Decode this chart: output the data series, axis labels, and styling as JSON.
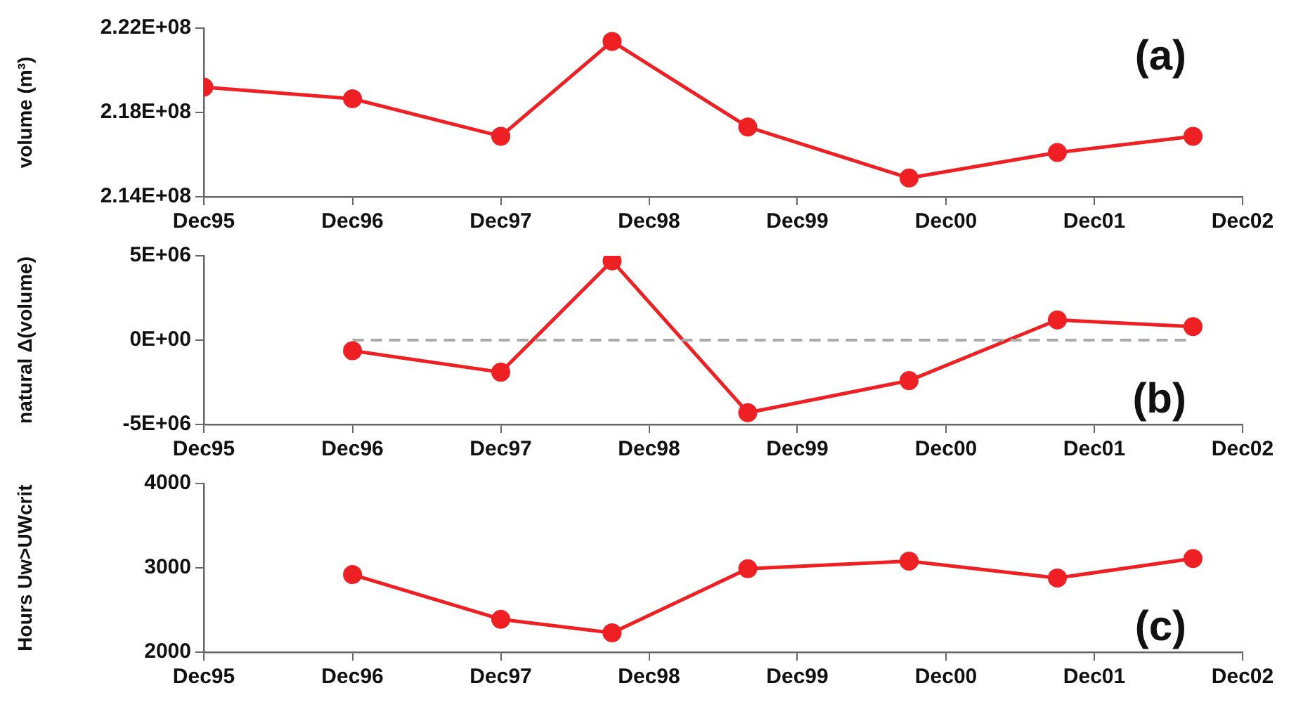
{
  "chart_data": [
    {
      "type": "line",
      "ylabel": "volume (m³)",
      "annotations": [
        "(a)"
      ],
      "marker": "circle",
      "line_style": "solid",
      "grid": false,
      "legend": false,
      "x": [
        "1995-12",
        "1996-12",
        "1997-12",
        "1998-09",
        "1999-08",
        "2000-09",
        "2001-09",
        "2002-08"
      ],
      "series": [
        {
          "color": "#ee2024",
          "values": [
            219200000,
            218650000,
            216870000,
            221370000,
            217310000,
            214890000,
            216100000,
            216870000
          ]
        }
      ],
      "xlim": [
        "1995-12",
        "2002-12"
      ],
      "xticks": [
        {
          "value": "1995-12",
          "label": "Dec95"
        },
        {
          "value": "1996-12",
          "label": "Dec96"
        },
        {
          "value": "1997-12",
          "label": "Dec97"
        },
        {
          "value": "1998-12",
          "label": "Dec98"
        },
        {
          "value": "1999-12",
          "label": "Dec99"
        },
        {
          "value": "2000-12",
          "label": "Dec00"
        },
        {
          "value": "2001-12",
          "label": "Dec01"
        },
        {
          "value": "2002-12",
          "label": "Dec02"
        }
      ],
      "ylim": [
        214000000,
        222000000
      ],
      "yticks": [
        {
          "value": 214000000,
          "label": "2.14E+08"
        },
        {
          "value": 218000000,
          "label": "2.18E+08"
        },
        {
          "value": 222000000,
          "label": "2.22E+08"
        }
      ]
    },
    {
      "type": "line",
      "ylabel": "natural Δ(volume)",
      "annotations": [
        "(b)"
      ],
      "marker": "circle",
      "line_style": "solid",
      "grid": false,
      "legend": false,
      "x": [
        "1996-12",
        "1997-12",
        "1998-09",
        "1999-08",
        "2000-09",
        "2001-09",
        "2002-08"
      ],
      "series": [
        {
          "color": "#ee2024",
          "values": [
            -630000,
            -1900000,
            4700000,
            -4300000,
            -2400000,
            1200000,
            800000
          ]
        }
      ],
      "ref_lines": [
        {
          "axis": "y",
          "value": 0,
          "color": "#aaaaaa",
          "line_style": "dashed"
        }
      ],
      "xlim": [
        "1995-12",
        "2002-12"
      ],
      "xticks": [
        {
          "value": "1995-12",
          "label": "Dec95"
        },
        {
          "value": "1996-12",
          "label": "Dec96"
        },
        {
          "value": "1997-12",
          "label": "Dec97"
        },
        {
          "value": "1998-12",
          "label": "Dec98"
        },
        {
          "value": "1999-12",
          "label": "Dec99"
        },
        {
          "value": "2000-12",
          "label": "Dec00"
        },
        {
          "value": "2001-12",
          "label": "Dec01"
        },
        {
          "value": "2002-12",
          "label": "Dec02"
        }
      ],
      "ylim": [
        -5000000,
        5000000
      ],
      "yticks": [
        {
          "value": -5000000,
          "label": "-5E+06"
        },
        {
          "value": 0,
          "label": "0E+00"
        },
        {
          "value": 5000000,
          "label": "5E+06"
        }
      ]
    },
    {
      "type": "line",
      "ylabel": "Hours Uw>UWcrit",
      "annotations": [
        "(c)"
      ],
      "marker": "circle",
      "line_style": "solid",
      "grid": false,
      "legend": false,
      "x": [
        "1996-12",
        "1997-12",
        "1998-09",
        "1999-08",
        "2000-09",
        "2001-09",
        "2002-08"
      ],
      "series": [
        {
          "color": "#ee2024",
          "values": [
            2920,
            2390,
            2230,
            2990,
            3080,
            2880,
            3110
          ]
        }
      ],
      "xlim": [
        "1995-12",
        "2002-12"
      ],
      "xticks": [
        {
          "value": "1995-12",
          "label": "Dec95"
        },
        {
          "value": "1996-12",
          "label": "Dec96"
        },
        {
          "value": "1997-12",
          "label": "Dec97"
        },
        {
          "value": "1998-12",
          "label": "Dec98"
        },
        {
          "value": "1999-12",
          "label": "Dec99"
        },
        {
          "value": "2000-12",
          "label": "Dec00"
        },
        {
          "value": "2001-12",
          "label": "Dec01"
        },
        {
          "value": "2002-12",
          "label": "Dec02"
        }
      ],
      "ylim": [
        2000,
        4000
      ],
      "yticks": [
        2000,
        3000,
        4000
      ]
    }
  ]
}
